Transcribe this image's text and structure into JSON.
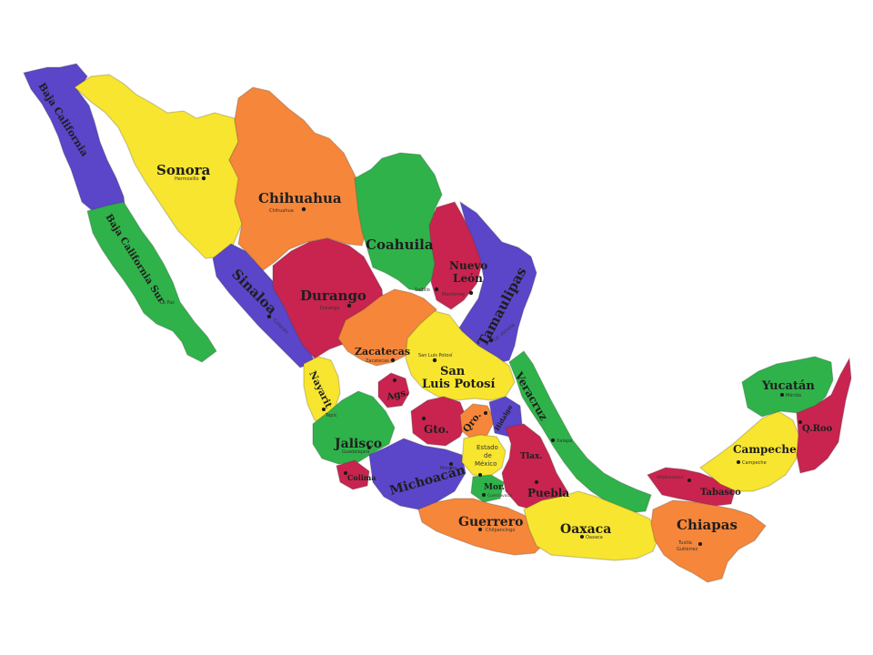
{
  "colors": {
    "yellow": "#f7e52f",
    "orange": "#f6863a",
    "green": "#2fb24a",
    "purple": "#5b45c8",
    "crimson": "#c8244f",
    "background": "#ffffff"
  },
  "states": {
    "baja_california": "Baja California",
    "sonora": "Sonora",
    "sonora_capital": "Hermosillo",
    "chihuahua": "Chihuahua",
    "chihuahua_capital": "Chihuahua",
    "baja_california_sur": "Baja California Sur",
    "baja_california_sur_capital": "La Paz",
    "coahuila": "Coahuila",
    "coahuila_capital": "Saltillo",
    "nuevo_leon_line1": "Nuevo",
    "nuevo_leon_line2": "León",
    "nuevo_leon_capital": "Monterrey",
    "sinaloa": "Sinaloa",
    "sinaloa_capital": "Culiacán",
    "durango": "Durango",
    "durango_capital": "Durango",
    "tamaulipas": "Tamaulipas",
    "tamaulipas_capital": "Cd. Victoria",
    "zacatecas": "Zacatecas",
    "zacatecas_capital": "Zacatecas",
    "san_luis_potosi_line1": "San",
    "san_luis_potosi_line2": "Luis Potosí",
    "san_luis_potosi_capital": "San Luis Potosí",
    "nayarit": "Nayarit",
    "nayarit_capital": "Tepic",
    "aguascalientes": "Ags.",
    "veracruz": "Veracruz",
    "veracruz_capital": "Xalapa",
    "guanajuato": "Gto.",
    "queretaro": "Qro.",
    "hidalgo": "Hidalgo",
    "jalisco": "Jalisco",
    "jalisco_capital": "Guadalajara",
    "colima": "Colima",
    "michoacan": "Michoacán",
    "michoacan_capital": "Morelia",
    "estado_de_mexico_line1": "Estado",
    "estado_de_mexico_line2": "de",
    "estado_de_mexico_line3": "México",
    "tlaxcala": "Tlax.",
    "morelos": "Mor.",
    "morelos_capital": "Cuernavaca",
    "puebla": "Puebla",
    "guerrero": "Guerrero",
    "guerrero_capital": "Chilpancingo",
    "oaxaca": "Oaxaca",
    "oaxaca_capital": "Oaxaca",
    "yucatan": "Yucatán",
    "yucatan_capital": "Mérida",
    "campeche": "Campeche",
    "campeche_capital": "Campeche",
    "quintana_roo": "Q.Roo",
    "tabasco": "Tabasco",
    "tabasco_capital": "Villahermosa",
    "chiapas": "Chiapas",
    "chiapas_capital_line1": "Tuxtla",
    "chiapas_capital_line2": "Gutiérrez"
  }
}
